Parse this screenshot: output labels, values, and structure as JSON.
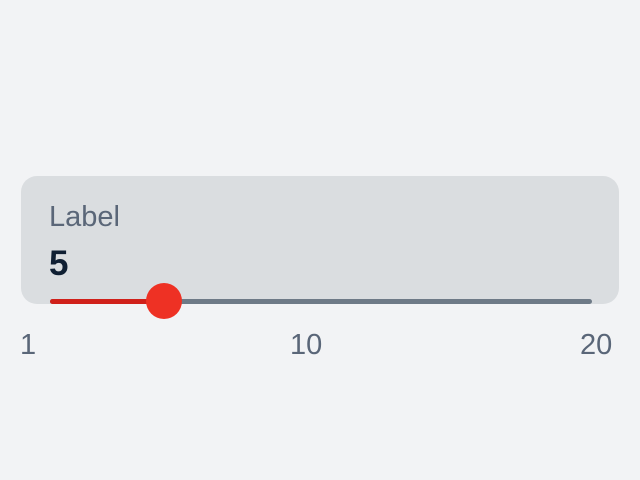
{
  "slider": {
    "label": "Label",
    "value": 5,
    "value_text": "5",
    "min": 1,
    "max": 20,
    "ticks": {
      "min_label": "1",
      "mid_label": "10",
      "max_label": "20"
    }
  },
  "colors": {
    "background": "#f2f3f5",
    "card": "#dadde0",
    "accent": "#ee3124",
    "track_fill": "#d0201a",
    "track": "#6e7a87",
    "label_text": "#5a6678",
    "value_text": "#0f1f33"
  }
}
